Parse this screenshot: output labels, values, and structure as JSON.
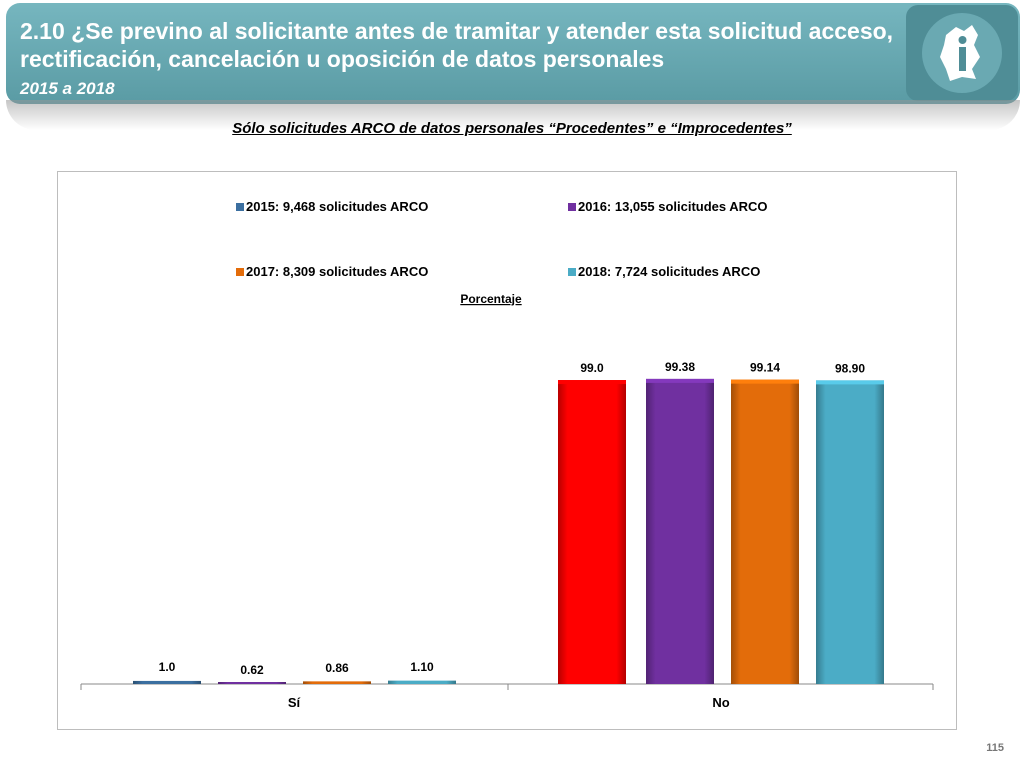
{
  "header": {
    "title": "2.10 ¿Se previno al solicitante  antes de tramitar y atender esta solicitud acceso, rectificación, cancelación u oposición de datos personales",
    "subtitle": "2015 a 2018"
  },
  "chart_heading": "Sólo solicitudes ARCO de datos personales “Procedentes” e “Improcedentes”",
  "page_number": "115",
  "colors": {
    "header": "#6aabb4",
    "logo": "#4f8d96"
  },
  "chart_data": {
    "type": "bar",
    "title": "",
    "ylabel": "Porcentaje",
    "categories": [
      "Sí",
      "No"
    ],
    "ylim": [
      0,
      100
    ],
    "legend_position": "top",
    "grid": false,
    "series": [
      {
        "name": "2015: 9,468 solicitudes ARCO",
        "color": "#3b6fa0",
        "values": [
          1.0,
          99.0
        ],
        "labels": [
          "1.0",
          "99.0"
        ]
      },
      {
        "name": "2016: 13,055 solicitudes ARCO",
        "color": "#7030a0",
        "values": [
          0.62,
          99.38
        ],
        "labels": [
          "0.62",
          "99.38"
        ]
      },
      {
        "name": "2017:  8,309  solicitudes ARCO",
        "color": "#e36c0a",
        "values": [
          0.86,
          99.14
        ],
        "labels": [
          "0.86",
          "99.14"
        ]
      },
      {
        "name": "2018: 7,724 solicitudes ARCO",
        "color": "#4bacc6",
        "values": [
          1.1,
          98.9
        ],
        "labels": [
          "1.10",
          "98.90"
        ]
      }
    ],
    "bar_color_overrides": [
      {
        "series": 0,
        "category": 1,
        "color": "#ff0000"
      }
    ]
  }
}
